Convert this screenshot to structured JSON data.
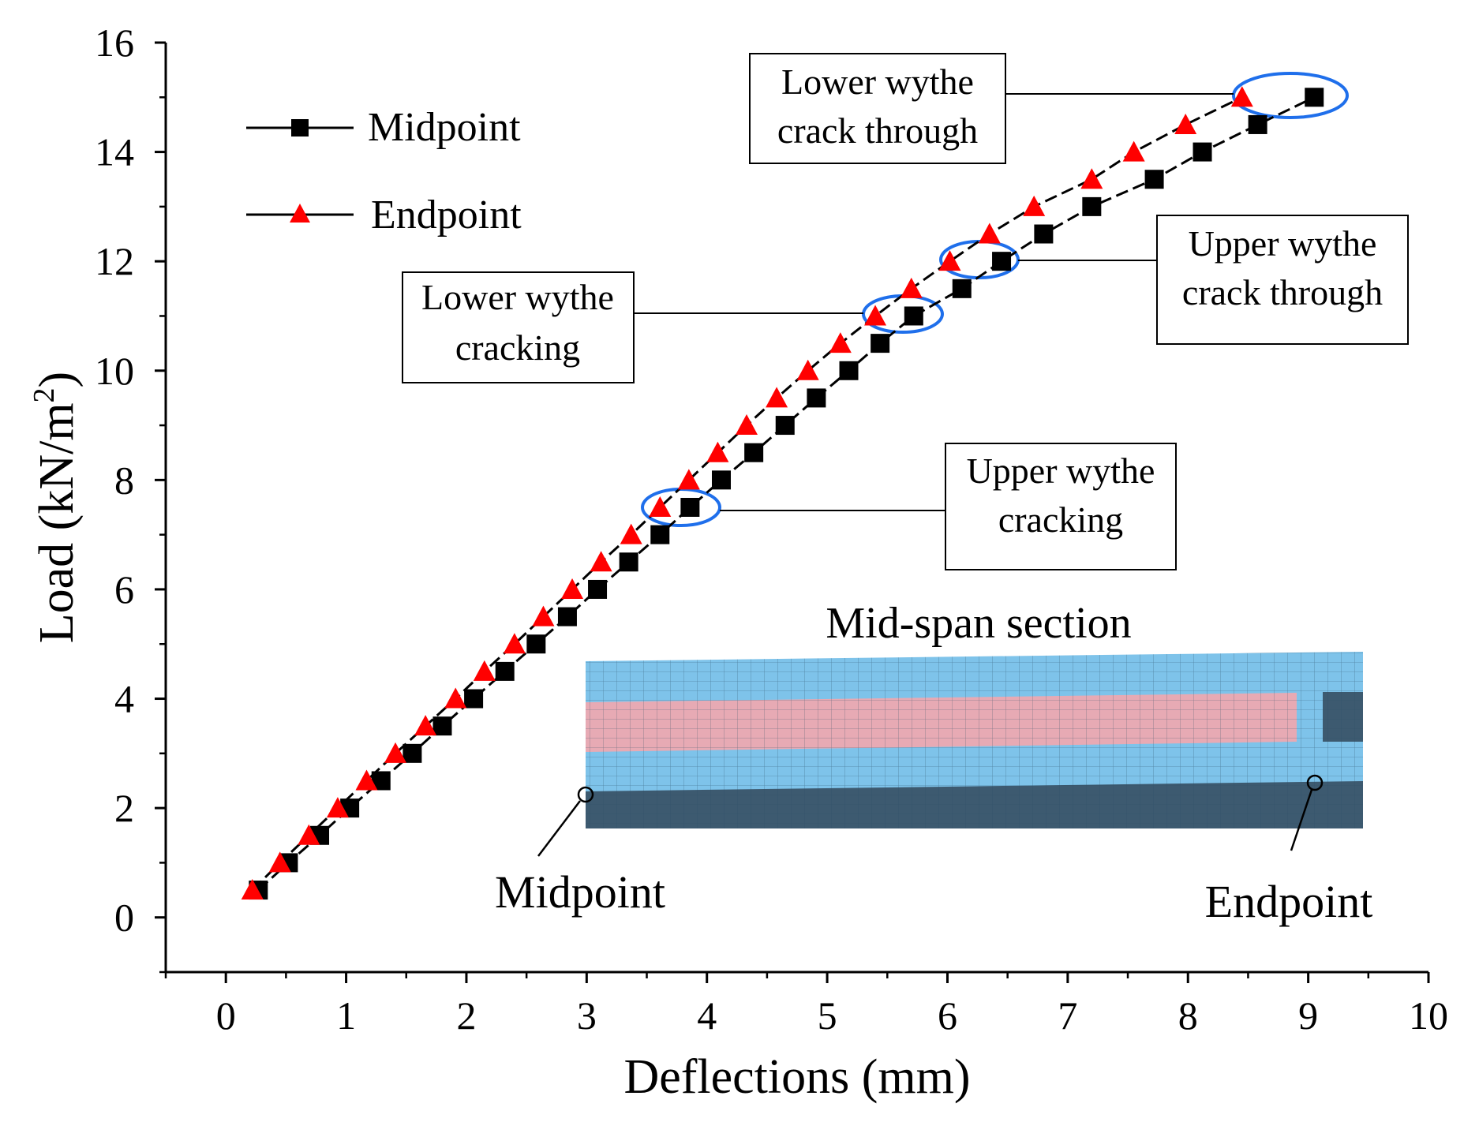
{
  "chart_data": {
    "type": "line",
    "title": "",
    "xlabel": "Deflections (mm)",
    "ylabel": "Load (kN/m",
    "ylabel_sup": "2",
    "ylabel_close": ")",
    "xlim": [
      -0.5,
      10
    ],
    "ylim": [
      -1,
      16
    ],
    "xticks": [
      0,
      1,
      2,
      3,
      4,
      5,
      6,
      7,
      8,
      9,
      10
    ],
    "yticks": [
      0,
      2,
      4,
      6,
      8,
      10,
      12,
      14,
      16
    ],
    "legend_position": "top-left",
    "series": [
      {
        "name": "Midpoint",
        "marker": "square",
        "color": "#000000",
        "x": [
          0.27,
          0.52,
          0.78,
          1.03,
          1.29,
          1.55,
          1.8,
          2.06,
          2.32,
          2.58,
          2.84,
          3.09,
          3.35,
          3.61,
          3.86,
          4.12,
          4.39,
          4.65,
          4.91,
          5.18,
          5.44,
          5.72,
          6.12,
          6.45,
          6.8,
          7.2,
          7.72,
          8.12,
          8.58,
          9.05
        ],
        "values": [
          0.5,
          1.0,
          1.5,
          2.0,
          2.5,
          3.0,
          3.5,
          4.0,
          4.5,
          5.0,
          5.5,
          6.0,
          6.5,
          7.0,
          7.5,
          8.0,
          8.5,
          9.0,
          9.5,
          10.0,
          10.5,
          11.0,
          11.5,
          12.0,
          12.5,
          13.0,
          13.5,
          14.0,
          14.5,
          15.0
        ]
      },
      {
        "name": "Endpoint",
        "marker": "triangle",
        "color": "#ff0000",
        "x": [
          0.22,
          0.45,
          0.69,
          0.93,
          1.17,
          1.41,
          1.66,
          1.91,
          2.15,
          2.4,
          2.64,
          2.88,
          3.12,
          3.37,
          3.61,
          3.85,
          4.09,
          4.33,
          4.58,
          4.84,
          5.11,
          5.4,
          5.7,
          6.02,
          6.35,
          6.72,
          7.2,
          7.55,
          7.98,
          8.45
        ],
        "values": [
          0.5,
          1.0,
          1.5,
          2.0,
          2.5,
          3.0,
          3.5,
          4.0,
          4.5,
          5.0,
          5.5,
          6.0,
          6.5,
          7.0,
          7.5,
          8.0,
          8.5,
          9.0,
          9.5,
          10.0,
          10.5,
          11.0,
          11.5,
          12.0,
          12.5,
          13.0,
          13.5,
          14.0,
          14.5,
          15.0
        ]
      }
    ],
    "annotations": [
      {
        "lines": [
          "Upper wythe",
          "cracking"
        ],
        "target_load": 7.5
      },
      {
        "lines": [
          "Lower wythe",
          "cracking"
        ],
        "target_load": 11.0
      },
      {
        "lines": [
          "Upper wythe",
          "crack through"
        ],
        "target_load": 12.0
      },
      {
        "lines": [
          "Lower wythe",
          "crack through"
        ],
        "target_load": 15.0
      }
    ],
    "inset": {
      "title": "Mid-span section",
      "labels": [
        "Midpoint",
        "Endpoint"
      ],
      "colors": {
        "light": "#7ec3ea",
        "pink": "#e7aab4",
        "dark": "#3d5a70",
        "highlight": "#1f6feb"
      }
    }
  }
}
